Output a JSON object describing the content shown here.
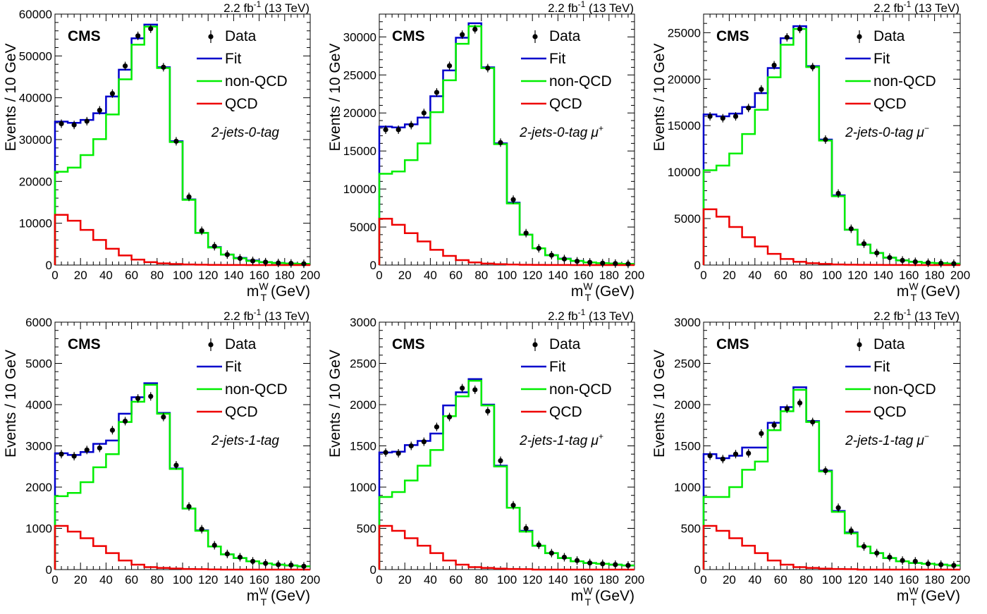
{
  "figure": {
    "lumi_label": "2.2 fb",
    "lumi_exp": "-1",
    "energy_label": "(13 TeV)",
    "experiment_label": "CMS",
    "legend": {
      "data": "Data",
      "fit": "Fit",
      "non_qcd": "non-QCD",
      "qcd": "QCD"
    },
    "ylabel": "Events / 10 GeV",
    "xlabel_main": "m",
    "xlabel_sub": "T",
    "xlabel_sup": "W",
    "xlabel_unit": "(GeV)",
    "colors": {
      "fit": "#0000cc",
      "non_qcd": "#00ee00",
      "qcd": "#ee0000",
      "data": "#000000",
      "axes": "#000000"
    }
  },
  "chart_data": [
    {
      "type": "histogram",
      "category_label": "2-jets-0-tag",
      "charge": "",
      "xlim": [
        0,
        200
      ],
      "ylim": [
        0,
        60000
      ],
      "xticks": [
        0,
        20,
        40,
        60,
        80,
        100,
        120,
        140,
        160,
        180,
        200
      ],
      "yticks": [
        0,
        10000,
        20000,
        30000,
        40000,
        50000,
        60000
      ],
      "bin_edges": [
        0,
        10,
        20,
        30,
        40,
        50,
        60,
        70,
        80,
        90,
        100,
        110,
        120,
        130,
        140,
        150,
        160,
        170,
        180,
        190,
        200
      ],
      "series": [
        {
          "name": "Data",
          "style": "points",
          "x": [
            5,
            15,
            25,
            35,
            45,
            55,
            65,
            75,
            85,
            95,
            105,
            115,
            125,
            135,
            145,
            155,
            165,
            175,
            185,
            195
          ],
          "values": [
            33800,
            33500,
            34400,
            37000,
            41000,
            47600,
            54800,
            56500,
            47300,
            29600,
            16300,
            8200,
            4500,
            2500,
            1600,
            1000,
            700,
            500,
            400,
            300
          ]
        },
        {
          "name": "Fit",
          "style": "step",
          "values": [
            34300,
            34000,
            34700,
            36300,
            40300,
            46700,
            54200,
            57500,
            47300,
            29600,
            15700,
            7700,
            4300,
            2500,
            1700,
            1100,
            700,
            500,
            350,
            300
          ]
        },
        {
          "name": "non-QCD",
          "style": "step",
          "values": [
            22300,
            23300,
            26300,
            30100,
            36000,
            44400,
            52700,
            57000,
            47100,
            29400,
            15600,
            7700,
            4200,
            2500,
            1600,
            1000,
            700,
            500,
            350,
            300
          ]
        },
        {
          "name": "QCD",
          "style": "step",
          "values": [
            12000,
            10600,
            8400,
            6000,
            3900,
            2300,
            1300,
            700,
            400,
            250,
            150,
            80,
            50,
            30,
            20,
            10,
            5,
            0,
            0,
            0
          ]
        }
      ]
    },
    {
      "type": "histogram",
      "category_label": "2-jets-0-tag",
      "charge": "+",
      "xlim": [
        0,
        200
      ],
      "ylim": [
        0,
        33000
      ],
      "xticks": [
        0,
        20,
        40,
        60,
        80,
        100,
        120,
        140,
        160,
        180,
        200
      ],
      "yticks": [
        0,
        5000,
        10000,
        15000,
        20000,
        25000,
        30000
      ],
      "bin_edges": [
        0,
        10,
        20,
        30,
        40,
        50,
        60,
        70,
        80,
        90,
        100,
        110,
        120,
        130,
        140,
        150,
        160,
        170,
        180,
        190,
        200
      ],
      "series": [
        {
          "name": "Data",
          "style": "points",
          "x": [
            5,
            15,
            25,
            35,
            45,
            55,
            65,
            75,
            85,
            95,
            105,
            115,
            125,
            135,
            145,
            155,
            165,
            175,
            185,
            195
          ],
          "values": [
            17800,
            17800,
            18400,
            20000,
            22700,
            26200,
            30300,
            31000,
            25900,
            16100,
            8600,
            4200,
            2200,
            1300,
            800,
            500,
            350,
            250,
            200,
            150
          ]
        },
        {
          "name": "Fit",
          "style": "step",
          "values": [
            18200,
            18100,
            18500,
            19400,
            22200,
            25600,
            29900,
            31800,
            26000,
            16000,
            8200,
            4000,
            2200,
            1300,
            850,
            550,
            350,
            250,
            200,
            150
          ]
        },
        {
          "name": "non-QCD",
          "style": "step",
          "values": [
            12000,
            12300,
            13800,
            16000,
            20100,
            24300,
            29100,
            31400,
            25900,
            15900,
            8100,
            4000,
            2200,
            1300,
            800,
            550,
            350,
            250,
            200,
            150
          ]
        },
        {
          "name": "QCD",
          "style": "step",
          "values": [
            6100,
            5300,
            4200,
            3100,
            2000,
            1200,
            650,
            350,
            200,
            120,
            70,
            40,
            25,
            15,
            10,
            5,
            0,
            0,
            0,
            0
          ]
        }
      ]
    },
    {
      "type": "histogram",
      "category_label": "2-jets-0-tag",
      "charge": "−",
      "xlim": [
        0,
        200
      ],
      "ylim": [
        0,
        27000
      ],
      "xticks": [
        0,
        20,
        40,
        60,
        80,
        100,
        120,
        140,
        160,
        180,
        200
      ],
      "yticks": [
        0,
        5000,
        10000,
        15000,
        20000,
        25000
      ],
      "bin_edges": [
        0,
        10,
        20,
        30,
        40,
        50,
        60,
        70,
        80,
        90,
        100,
        110,
        120,
        130,
        140,
        150,
        160,
        170,
        180,
        190,
        200
      ],
      "series": [
        {
          "name": "Data",
          "style": "points",
          "x": [
            5,
            15,
            25,
            35,
            45,
            55,
            65,
            75,
            85,
            95,
            105,
            115,
            125,
            135,
            145,
            155,
            165,
            175,
            185,
            195
          ],
          "values": [
            16000,
            15800,
            16000,
            16900,
            18900,
            21500,
            24500,
            25400,
            21300,
            13500,
            7700,
            3900,
            2300,
            1300,
            800,
            500,
            350,
            250,
            200,
            150
          ]
        },
        {
          "name": "Fit",
          "style": "step",
          "values": [
            16200,
            16000,
            16300,
            17000,
            18500,
            21200,
            24400,
            25700,
            21400,
            13500,
            7500,
            3800,
            2200,
            1300,
            800,
            500,
            350,
            250,
            200,
            150
          ]
        },
        {
          "name": "non-QCD",
          "style": "step",
          "values": [
            10200,
            10700,
            12000,
            14100,
            16700,
            20200,
            23700,
            25400,
            21300,
            13400,
            7400,
            3800,
            2200,
            1300,
            800,
            500,
            350,
            250,
            200,
            150
          ]
        },
        {
          "name": "QCD",
          "style": "step",
          "values": [
            6000,
            5200,
            4100,
            3000,
            2000,
            1200,
            650,
            350,
            200,
            120,
            70,
            40,
            25,
            15,
            10,
            5,
            0,
            0,
            0,
            0
          ]
        }
      ]
    },
    {
      "type": "histogram",
      "category_label": "2-jets-1-tag",
      "charge": "",
      "xlim": [
        0,
        200
      ],
      "ylim": [
        0,
        6000
      ],
      "xticks": [
        0,
        20,
        40,
        60,
        80,
        100,
        120,
        140,
        160,
        180,
        200
      ],
      "yticks": [
        0,
        1000,
        2000,
        3000,
        4000,
        5000,
        6000
      ],
      "bin_edges": [
        0,
        10,
        20,
        30,
        40,
        50,
        60,
        70,
        80,
        90,
        100,
        110,
        120,
        130,
        140,
        150,
        160,
        170,
        180,
        190,
        200
      ],
      "series": [
        {
          "name": "Data",
          "style": "points",
          "x": [
            5,
            15,
            25,
            35,
            45,
            55,
            65,
            75,
            85,
            95,
            105,
            115,
            125,
            135,
            145,
            155,
            165,
            175,
            185,
            195
          ],
          "values": [
            2800,
            2750,
            2900,
            2950,
            3380,
            3600,
            4150,
            4200,
            3700,
            2530,
            1530,
            980,
            590,
            380,
            300,
            200,
            150,
            120,
            110,
            80
          ]
        },
        {
          "name": "Fit",
          "style": "step",
          "values": [
            2820,
            2780,
            2850,
            3050,
            3130,
            3780,
            4180,
            4520,
            3800,
            2450,
            1480,
            950,
            560,
            370,
            280,
            200,
            150,
            120,
            100,
            80
          ]
        },
        {
          "name": "non-QCD",
          "style": "step",
          "values": [
            1780,
            1860,
            2120,
            2480,
            2800,
            3580,
            4070,
            4480,
            3780,
            2440,
            1480,
            940,
            560,
            370,
            280,
            200,
            150,
            120,
            100,
            80
          ]
        },
        {
          "name": "QCD",
          "style": "step",
          "values": [
            1060,
            920,
            760,
            570,
            400,
            220,
            120,
            60,
            40,
            25,
            15,
            10,
            5,
            0,
            0,
            0,
            0,
            0,
            0,
            0
          ]
        }
      ]
    },
    {
      "type": "histogram",
      "category_label": "2-jets-1-tag",
      "charge": "+",
      "xlim": [
        0,
        200
      ],
      "ylim": [
        0,
        3000
      ],
      "xticks": [
        0,
        20,
        40,
        60,
        80,
        100,
        120,
        140,
        160,
        180,
        200
      ],
      "yticks": [
        0,
        500,
        1000,
        1500,
        2000,
        2500,
        3000
      ],
      "bin_edges": [
        0,
        10,
        20,
        30,
        40,
        50,
        60,
        70,
        80,
        90,
        100,
        110,
        120,
        130,
        140,
        150,
        160,
        170,
        180,
        190,
        200
      ],
      "series": [
        {
          "name": "Data",
          "style": "points",
          "x": [
            5,
            15,
            25,
            35,
            45,
            55,
            65,
            75,
            85,
            95,
            105,
            115,
            125,
            135,
            145,
            155,
            165,
            175,
            185,
            195
          ],
          "values": [
            1420,
            1410,
            1500,
            1550,
            1730,
            1850,
            2200,
            2180,
            1920,
            1320,
            780,
            500,
            300,
            200,
            150,
            110,
            80,
            70,
            60,
            50
          ]
        },
        {
          "name": "Fit",
          "style": "step",
          "values": [
            1420,
            1430,
            1510,
            1560,
            1650,
            1990,
            2150,
            2310,
            2000,
            1260,
            750,
            470,
            290,
            200,
            140,
            100,
            80,
            70,
            60,
            50
          ]
        },
        {
          "name": "non-QCD",
          "style": "step",
          "values": [
            880,
            940,
            1080,
            1260,
            1450,
            1860,
            2100,
            2290,
            1990,
            1250,
            750,
            460,
            290,
            200,
            140,
            100,
            80,
            70,
            60,
            50
          ]
        },
        {
          "name": "QCD",
          "style": "step",
          "values": [
            530,
            470,
            380,
            290,
            200,
            110,
            60,
            30,
            20,
            12,
            8,
            5,
            0,
            0,
            0,
            0,
            0,
            0,
            0,
            0
          ]
        }
      ]
    },
    {
      "type": "histogram",
      "category_label": "2-jets-1-tag",
      "charge": "−",
      "xlim": [
        0,
        200
      ],
      "ylim": [
        0,
        3000
      ],
      "xticks": [
        0,
        20,
        40,
        60,
        80,
        100,
        120,
        140,
        160,
        180,
        200
      ],
      "yticks": [
        0,
        500,
        1000,
        1500,
        2000,
        2500,
        3000
      ],
      "bin_edges": [
        0,
        10,
        20,
        30,
        40,
        50,
        60,
        70,
        80,
        90,
        100,
        110,
        120,
        130,
        140,
        150,
        160,
        170,
        180,
        190,
        200
      ],
      "series": [
        {
          "name": "Data",
          "style": "points",
          "x": [
            5,
            15,
            25,
            35,
            45,
            55,
            65,
            75,
            85,
            95,
            105,
            115,
            125,
            135,
            145,
            155,
            165,
            175,
            185,
            195
          ],
          "values": [
            1380,
            1340,
            1400,
            1410,
            1650,
            1750,
            1950,
            2020,
            1790,
            1200,
            750,
            470,
            280,
            200,
            150,
            110,
            100,
            70,
            60,
            50
          ]
        },
        {
          "name": "Fit",
          "style": "step",
          "values": [
            1400,
            1350,
            1380,
            1480,
            1480,
            1780,
            1970,
            2210,
            1800,
            1200,
            710,
            450,
            280,
            200,
            140,
            100,
            80,
            70,
            60,
            50
          ]
        },
        {
          "name": "non-QCD",
          "style": "step",
          "values": [
            880,
            880,
            1000,
            1210,
            1310,
            1690,
            1920,
            2180,
            1790,
            1190,
            700,
            440,
            280,
            200,
            140,
            100,
            80,
            70,
            60,
            50
          ]
        },
        {
          "name": "QCD",
          "style": "step",
          "values": [
            530,
            470,
            380,
            290,
            200,
            110,
            60,
            30,
            20,
            12,
            8,
            5,
            0,
            0,
            0,
            0,
            0,
            0,
            0,
            0
          ]
        }
      ]
    }
  ]
}
